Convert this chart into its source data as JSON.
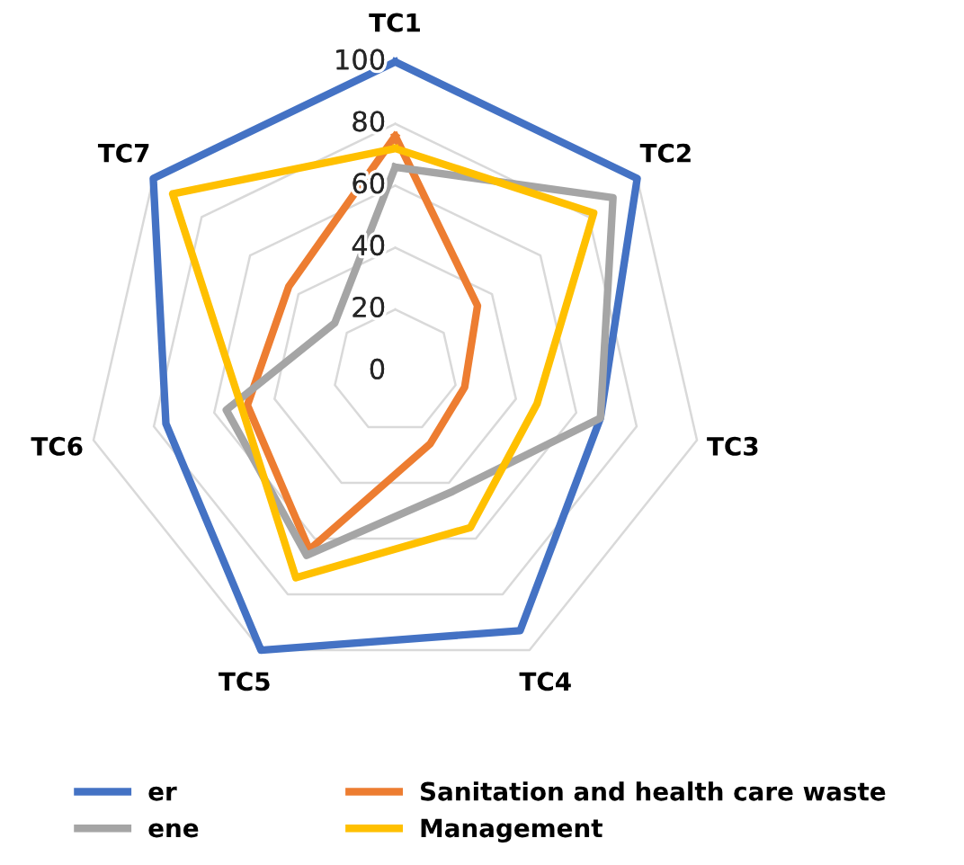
{
  "chart_data": {
    "type": "radar",
    "categories": [
      "TC1",
      "TC2",
      "TC3",
      "TC4",
      "TC5",
      "TC6",
      "TC7"
    ],
    "series": [
      {
        "name": "er",
        "color": "#4472c4",
        "values": [
          100,
          100,
          68,
          93,
          100,
          76,
          100
        ]
      },
      {
        "name": "Sanitation and health care waste",
        "color": "#ed7d31",
        "values": [
          76,
          34,
          23,
          26,
          64,
          49,
          44
        ]
      },
      {
        "name": "ene",
        "color": "#a5a5a5",
        "values": [
          66,
          90,
          68,
          43,
          66,
          56,
          25
        ]
      },
      {
        "name": "Management",
        "color": "#ffc000",
        "values": [
          72,
          82,
          47,
          56,
          74,
          51,
          92
        ]
      }
    ],
    "ylim": [
      0,
      100
    ],
    "yticks": [
      0,
      20,
      40,
      60,
      80,
      100
    ],
    "grid": true,
    "legend": "bottom",
    "marker": "none",
    "line_style": "solid"
  }
}
